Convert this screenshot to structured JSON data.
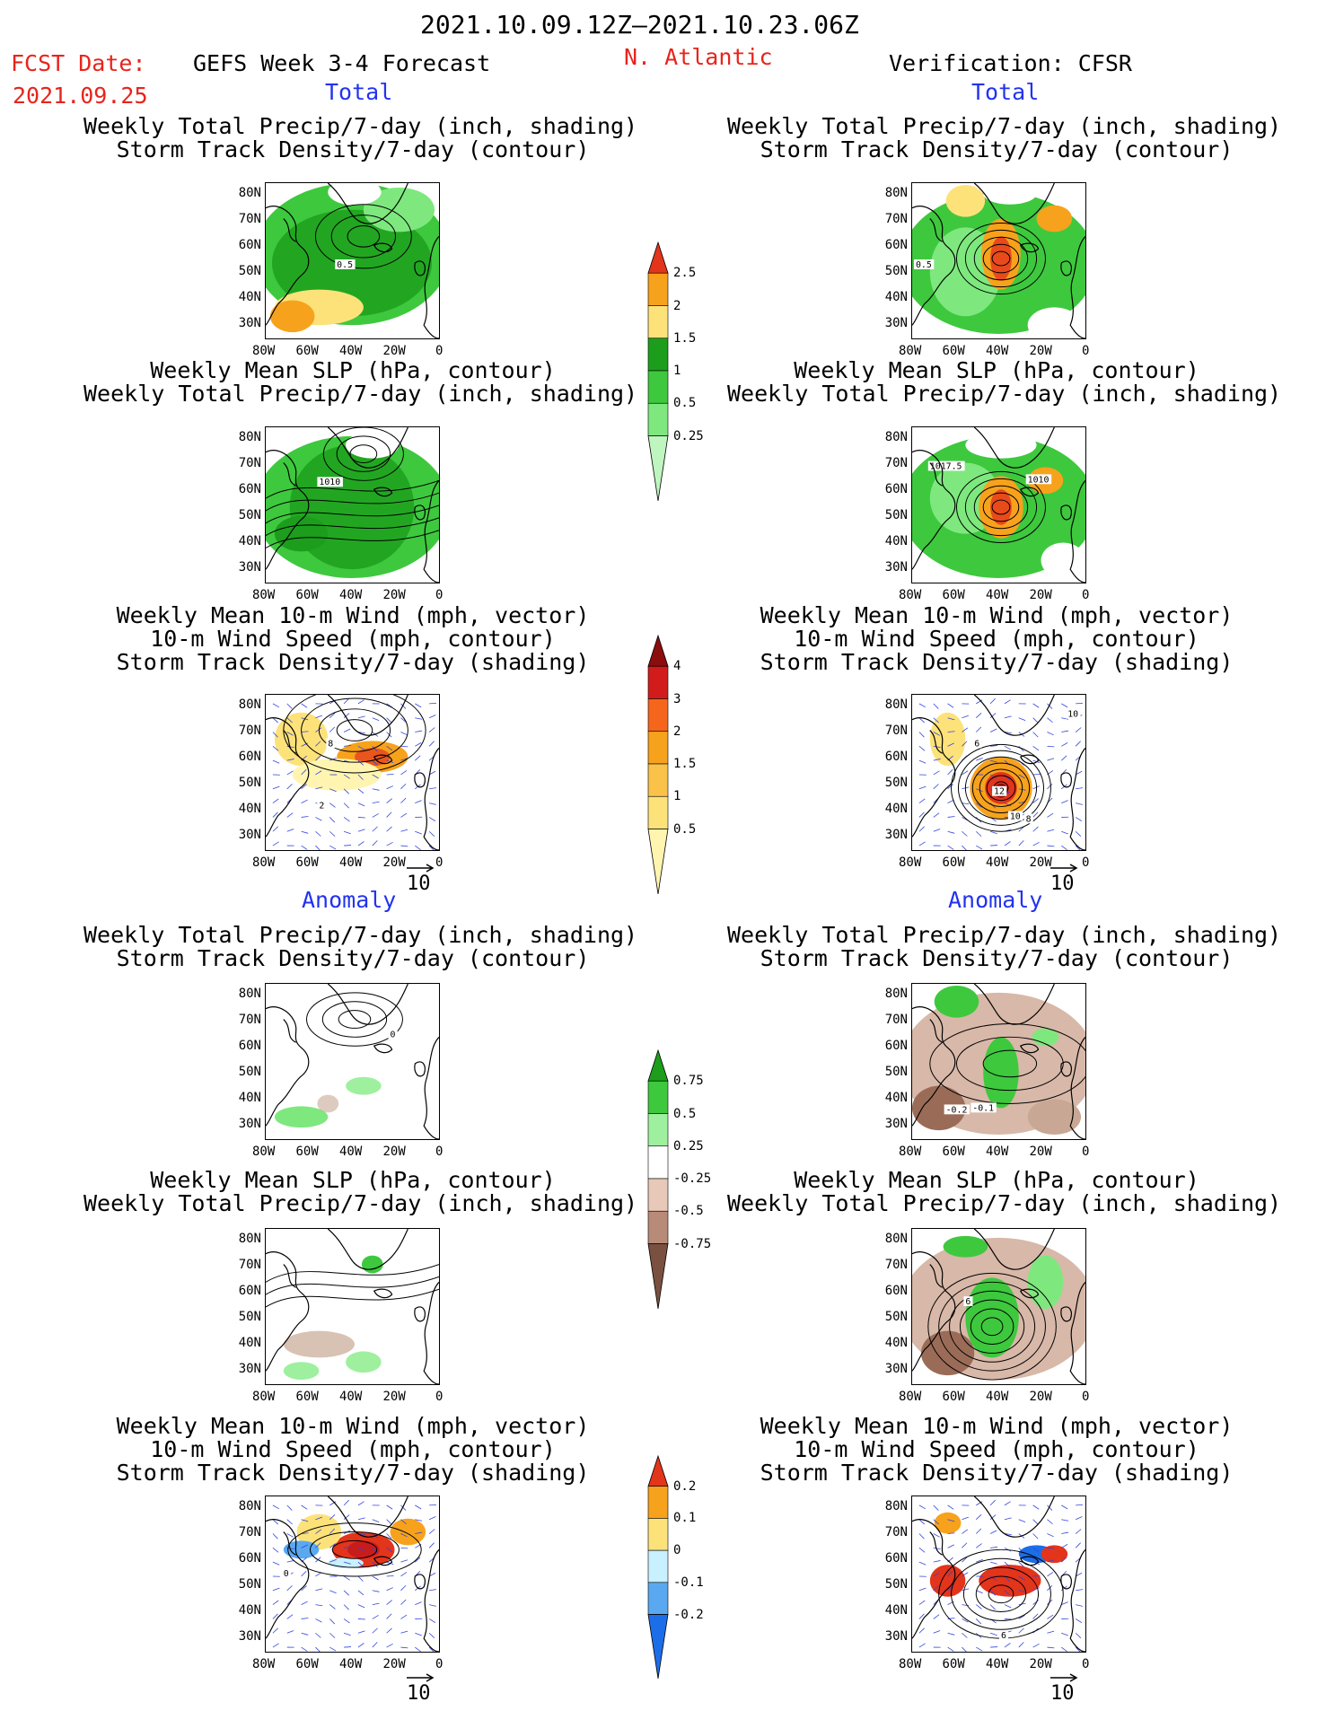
{
  "header": {
    "dates": "2021.10.09.12Z—2021.10.23.06Z",
    "fcst_label": "FCST Date:",
    "fcst_date": "2021.09.25",
    "model": "GEFS Week 3-4 Forecast",
    "region": "N. Atlantic",
    "verification": "Verification: CFSR"
  },
  "sections": {
    "total": "Total",
    "anomaly": "Anomaly"
  },
  "titles": {
    "precip_std": [
      "Weekly Total Precip/7-day (inch, shading)",
      "Storm Track Density/7-day (contour)"
    ],
    "slp_precip": [
      "Weekly Mean SLP (hPa, contour)",
      "Weekly Total Precip/7-day (inch, shading)"
    ],
    "wind_std": [
      "Weekly Mean 10-m Wind (mph, vector)",
      "10-m Wind Speed (mph, contour)",
      "Storm Track Density/7-day (shading)"
    ]
  },
  "axes": {
    "lat_ticks": [
      "80N",
      "70N",
      "60N",
      "50N",
      "40N",
      "30N"
    ],
    "lon_ticks": [
      "80W",
      "60W",
      "40W",
      "20W",
      "0"
    ]
  },
  "vector_ref": "10",
  "contour_labels": {
    "p1_left": "0.5",
    "p1_right": "0.5",
    "p2_left": "1010",
    "p2_right_a": "1017.5",
    "p2_right_b": "1010",
    "p3_left_a": "8",
    "p3_left_b": "2",
    "p3_right_a": "12",
    "p3_right_b": "10",
    "p3_right_c": "8",
    "p3_right_d": "10",
    "p3_right_e": "6",
    "p4_right_a": "-0.2",
    "p4_right_b": "-0.1",
    "p4_left_a": "0",
    "p5_right_a": "6",
    "p6_left_a": "0",
    "p6_right_a": "6"
  },
  "colorbars": {
    "precip_total": {
      "labels": [
        "2.5",
        "2",
        "1.5",
        "1",
        "0.5",
        "0.25"
      ],
      "colors": [
        "#e3341c",
        "#f7a21c",
        "#fde27a",
        "#1c9e1c",
        "#3ec83e",
        "#7ee87e",
        "#bff5bf"
      ]
    },
    "storm_total": {
      "labels": [
        "4",
        "3",
        "2",
        "1.5",
        "1",
        "0.5"
      ],
      "colors": [
        "#8c0d0d",
        "#d21c1c",
        "#f5661c",
        "#f7a21c",
        "#fbc24a",
        "#fde27a",
        "#fff5b0"
      ]
    },
    "precip_anom": {
      "labels": [
        "0.75",
        "0.5",
        "0.25",
        "-0.25",
        "-0.5",
        "-0.75"
      ],
      "colors": [
        "#1c9e1c",
        "#3ec83e",
        "#9ef09e",
        "#ffffff",
        "#e8c8b8",
        "#b88a78",
        "#7a5040"
      ]
    },
    "storm_anom": {
      "labels": [
        "0.2",
        "0.1",
        "0",
        "-0.1",
        "-0.2"
      ],
      "colors": [
        "#e3341c",
        "#f7a21c",
        "#fde27a",
        "#c8f0ff",
        "#5aa8f0",
        "#1c6ee8"
      ]
    }
  }
}
